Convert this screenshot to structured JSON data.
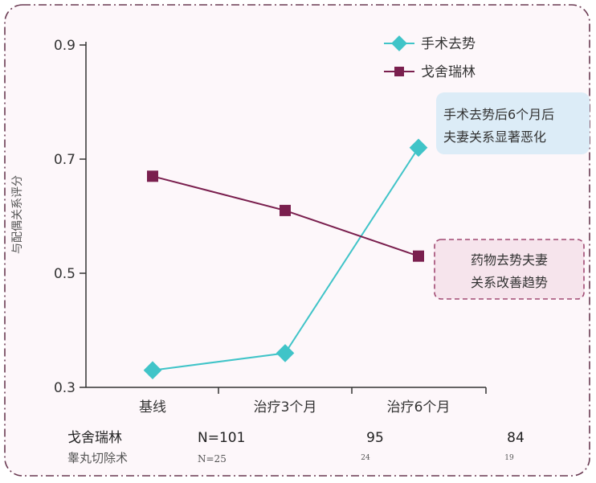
{
  "chart_data": {
    "type": "line",
    "categories": [
      "基线",
      "治疗3个月",
      "治疗6个月"
    ],
    "series": [
      {
        "name": "手术去势",
        "values": [
          0.33,
          0.36,
          0.72
        ],
        "color": "#40c4c8",
        "marker": "diamond"
      },
      {
        "name": "戈舍瑞林",
        "values": [
          0.67,
          0.61,
          0.53
        ],
        "color": "#7a1f4e",
        "marker": "square"
      }
    ],
    "ylabel": "与配偶关系评分",
    "ylim": [
      0.3,
      0.9
    ],
    "yticks": [
      "0.3",
      "0.5",
      "0.7",
      "0.9"
    ],
    "legend_position": "top-right",
    "annotations": [
      {
        "lines": [
          "手术去势后6个月后",
          "夫妻关系显著恶化"
        ],
        "style": "blue"
      },
      {
        "lines": [
          "药物去势夫妻",
          "关系改善趋势"
        ],
        "style": "pink"
      }
    ],
    "n_table": {
      "rows": [
        {
          "label": "戈舍瑞林",
          "values": [
            "N=101",
            "95",
            "84"
          ]
        },
        {
          "label": "睾丸切除术",
          "values": [
            "N=25",
            "24",
            "19"
          ]
        }
      ]
    }
  },
  "colors": {
    "frame_border": "#6a3a52",
    "axis": "#333333",
    "blue_box_fill": "#dcecf7",
    "pink_box_fill": "#f6e4ec",
    "pink_box_border": "#a14a73"
  }
}
